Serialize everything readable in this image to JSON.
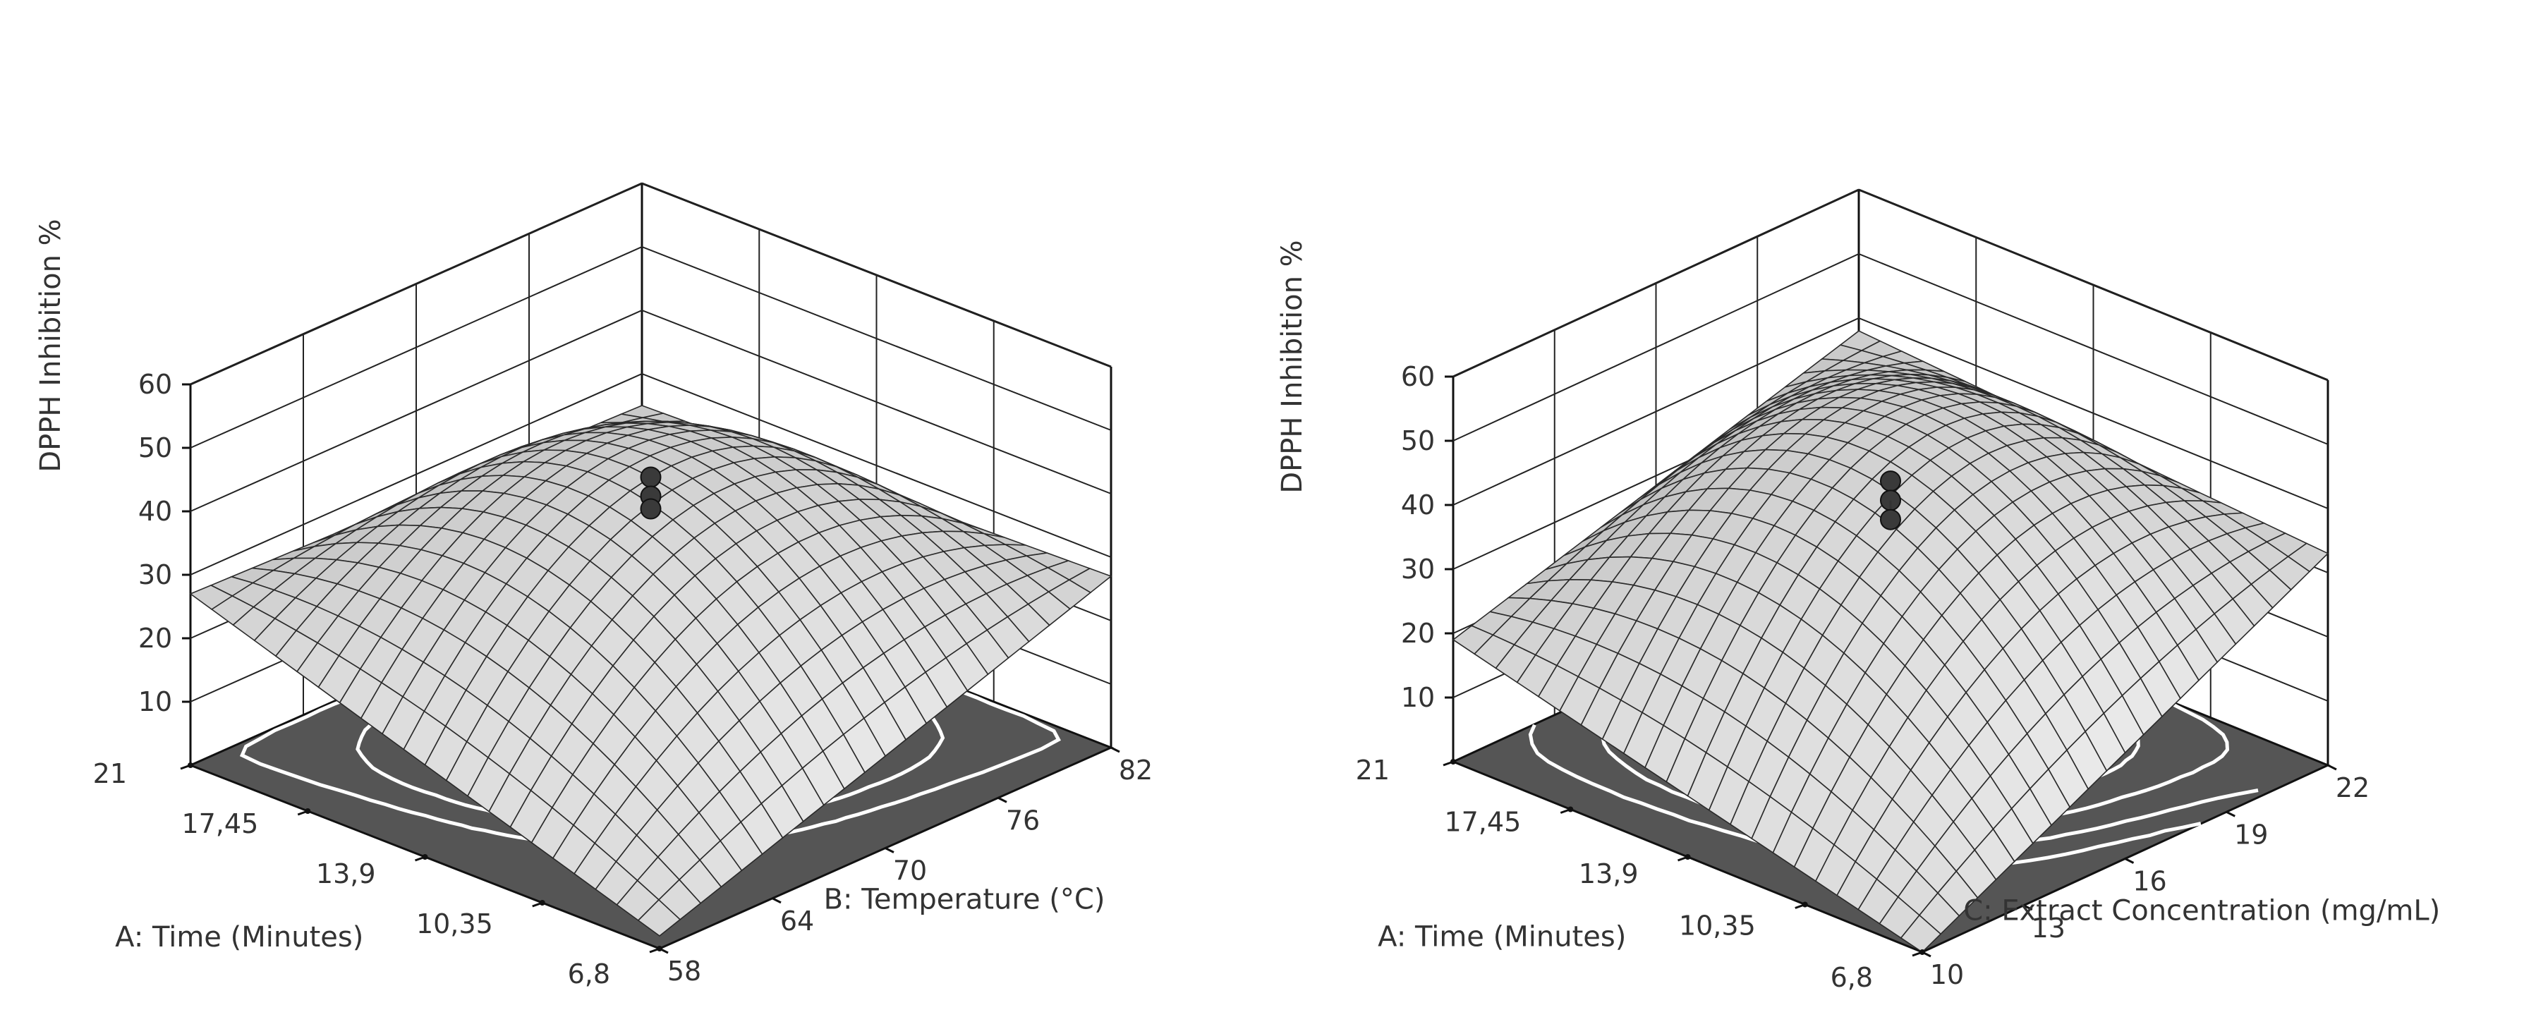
{
  "chart_data": [
    {
      "type": "surface3d",
      "zlabel": "DPPH Inhibition %",
      "xlabel": "A: Time (Minutes)",
      "ylabel": "B: Temperature (°C)",
      "zlim": [
        0,
        60
      ],
      "zticks": [
        "10",
        "20",
        "30",
        "40",
        "50",
        "60"
      ],
      "xticks": [
        "21",
        "17,45",
        "13,9",
        "10,35",
        "6,8"
      ],
      "yticks": [
        "58",
        "64",
        "70",
        "76",
        "82"
      ],
      "x_range": [
        6.8,
        21
      ],
      "y_range": [
        58,
        82
      ],
      "surface": {
        "center_value": 44,
        "corner_far": 25,
        "corner_near": 2,
        "corner_left": 27,
        "corner_right": 27
      },
      "design_points": [
        44,
        41,
        39
      ],
      "contours": "concentric ellipses centered on the floor",
      "grid": true
    },
    {
      "type": "surface3d",
      "zlabel": "DPPH Inhibition %",
      "xlabel": "A: Time (Minutes)",
      "ylabel": "C: Extract Concentration (mg/mL)",
      "zlim": [
        0,
        60
      ],
      "zticks": [
        "10",
        "20",
        "30",
        "40",
        "50",
        "60"
      ],
      "xticks": [
        "21",
        "17,45",
        "13,9",
        "10,35",
        "6,8"
      ],
      "yticks": [
        "10",
        "13",
        "16",
        "19",
        "22"
      ],
      "x_range": [
        6.8,
        21
      ],
      "y_range": [
        10,
        22
      ],
      "surface": {
        "center_value": 47,
        "corner_far": 38,
        "corner_near": 0,
        "corner_left": 19,
        "corner_right": 33
      },
      "design_points": [
        44,
        41,
        38
      ],
      "contours": "concentric arcs offset toward the back-right",
      "grid": true
    }
  ]
}
